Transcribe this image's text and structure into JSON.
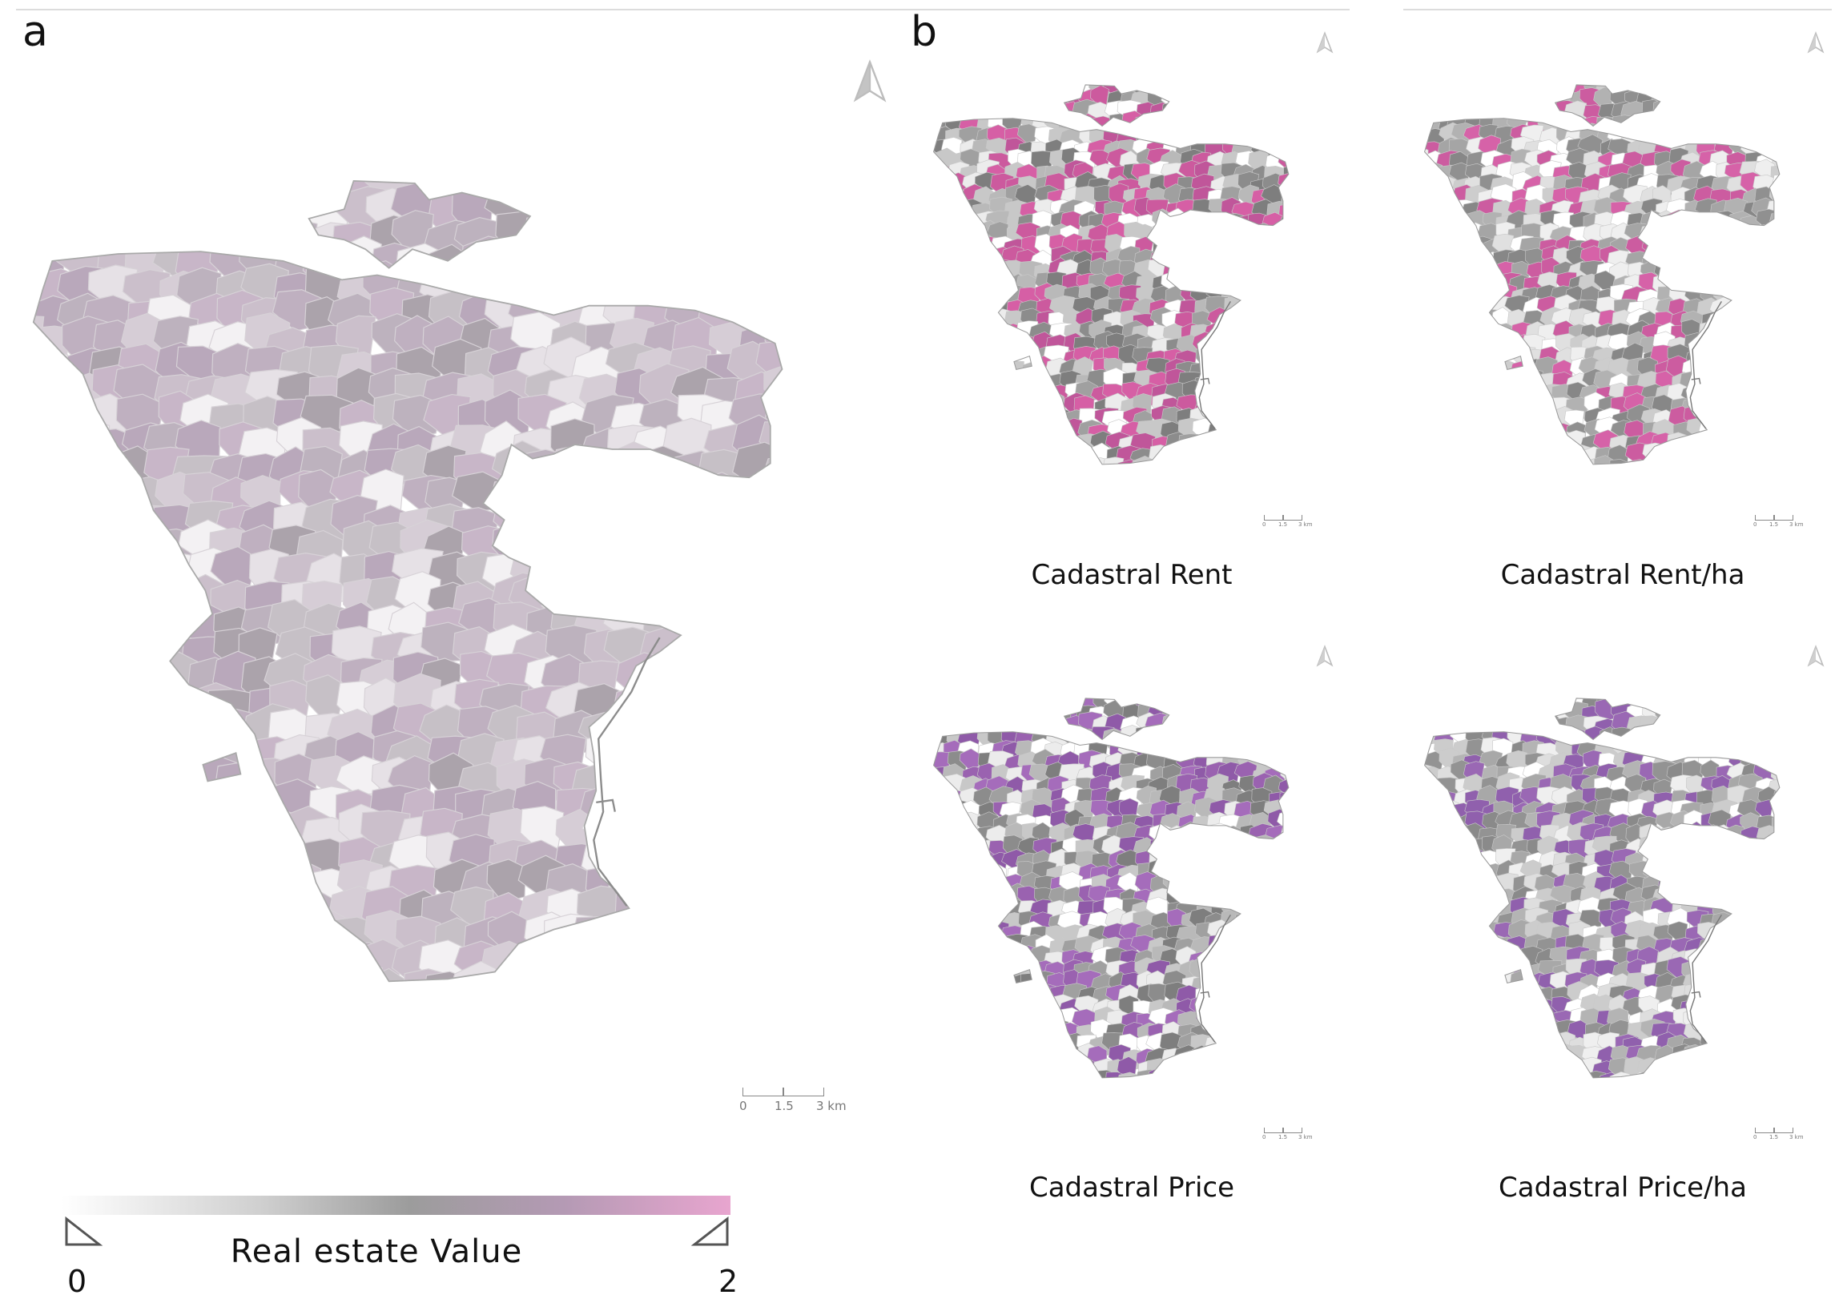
{
  "panels": {
    "a_label": "a",
    "b_label": "b"
  },
  "main_map": {
    "scale": {
      "t0": "0",
      "t1": "1.5",
      "t2": "3 km"
    },
    "colors": [
      "#c8b6c8",
      "#bfb0c0",
      "#b9a8bb",
      "#d6cdd6",
      "#e6e1e6",
      "#c6c0c6",
      "#aba3ab",
      "#f3f1f3",
      "#cbbfcb",
      "#bdb2be"
    ]
  },
  "small_maps": [
    {
      "caption": "Cadastral Rent",
      "accent": "#cc5a9e",
      "scale": {
        "t0": "0",
        "t1": "1.5",
        "t2": "3 km"
      }
    },
    {
      "caption": "Cadastral Rent/ha",
      "accent": "#cc5ca0",
      "scale": {
        "t0": "0",
        "t1": "1.5",
        "t2": "3 km"
      }
    },
    {
      "caption": "Cadastral Price",
      "accent": "#9a62b0",
      "scale": {
        "t0": "0",
        "t1": "1.5",
        "t2": "3 km"
      }
    },
    {
      "caption": "Cadastral Price/ha",
      "accent": "#9060ad",
      "scale": {
        "t0": "0",
        "t1": "1.5",
        "t2": "3 km"
      }
    }
  ],
  "legend": {
    "title": "Real estate Value",
    "min": "0",
    "max": "2"
  },
  "icons": {
    "north_arrow": "north-arrow-icon",
    "legend_triangle": "triangle-icon"
  }
}
